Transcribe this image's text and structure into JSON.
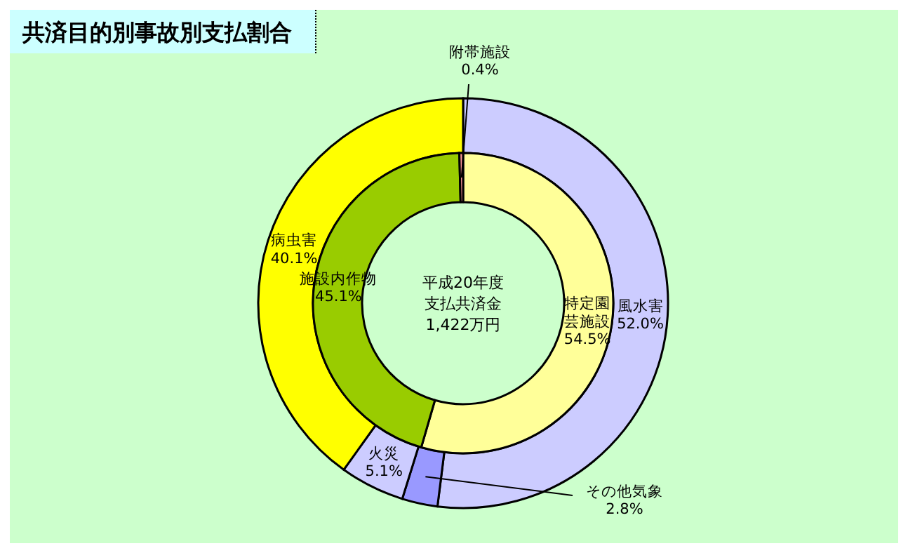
{
  "chart_data": [
    {
      "type": "donut",
      "title": "共済目的別事故別支払割合",
      "annotations": [
        "平成20年度",
        "支払共済金",
        "1,422万円"
      ],
      "categories": [
        "風水害",
        "その他気象",
        "火災",
        "病虫害"
      ],
      "values": [
        52.0,
        2.8,
        5.1,
        40.1
      ],
      "value_labels": [
        "52.0%",
        "2.8%",
        "5.1%",
        "40.1%"
      ],
      "colors": [
        "#ccccff",
        "#9999ff",
        "#ccccff",
        "#ffff00"
      ]
    },
    {
      "type": "donut",
      "categories": [
        "特定園芸施設",
        "施設内作物",
        "附帯施設"
      ],
      "values": [
        54.5,
        45.1,
        0.4
      ],
      "value_labels": [
        "54.5%",
        "45.1%",
        "0.4%"
      ],
      "colors": [
        "#ffff99",
        "#99cc00",
        "#ff9999"
      ]
    }
  ]
}
